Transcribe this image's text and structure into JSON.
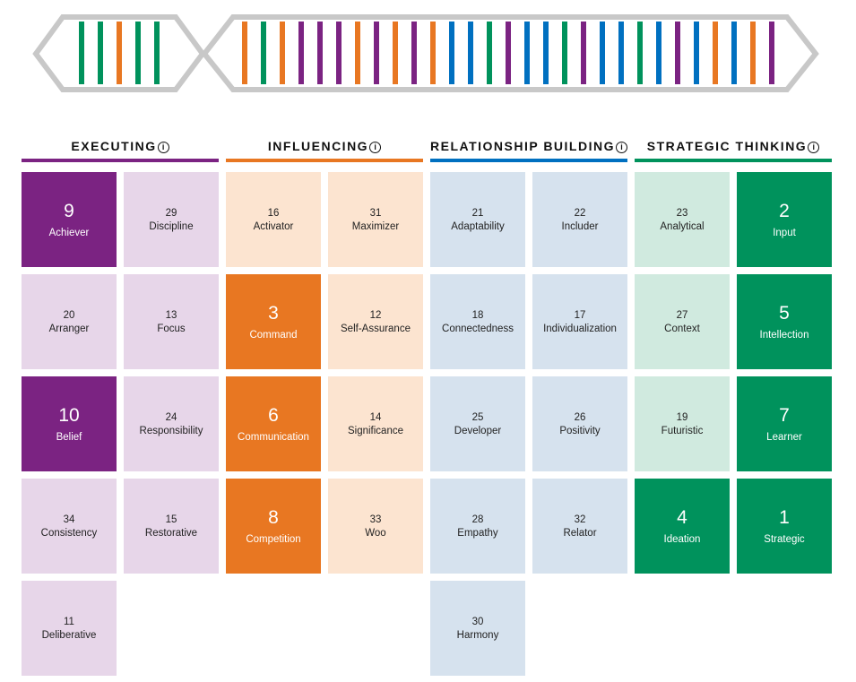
{
  "domains": [
    {
      "title": "EXECUTING",
      "color": "#7b2382",
      "light": "#e7d6e9",
      "strengths": [
        {
          "rank": 9,
          "name": "Achiever"
        },
        {
          "rank": 29,
          "name": "Discipline"
        },
        {
          "rank": 20,
          "name": "Arranger"
        },
        {
          "rank": 13,
          "name": "Focus"
        },
        {
          "rank": 10,
          "name": "Belief"
        },
        {
          "rank": 24,
          "name": "Responsibility"
        },
        {
          "rank": 34,
          "name": "Consistency"
        },
        {
          "rank": 15,
          "name": "Restorative"
        },
        {
          "rank": 11,
          "name": "Deliberative"
        }
      ]
    },
    {
      "title": "INFLUENCING",
      "color": "#e87722",
      "light": "#fce4d0",
      "strengths": [
        {
          "rank": 16,
          "name": "Activator"
        },
        {
          "rank": 31,
          "name": "Maximizer"
        },
        {
          "rank": 3,
          "name": "Command"
        },
        {
          "rank": 12,
          "name": "Self-Assurance"
        },
        {
          "rank": 6,
          "name": "Communication"
        },
        {
          "rank": 14,
          "name": "Significance"
        },
        {
          "rank": 8,
          "name": "Competition"
        },
        {
          "rank": 33,
          "name": "Woo"
        }
      ]
    },
    {
      "title": "RELATIONSHIP BUILDING",
      "color": "#0070c0",
      "light": "#d6e2ee",
      "strengths": [
        {
          "rank": 21,
          "name": "Adaptability"
        },
        {
          "rank": 22,
          "name": "Includer"
        },
        {
          "rank": 18,
          "name": "Connectedness"
        },
        {
          "rank": 17,
          "name": "Individualization"
        },
        {
          "rank": 25,
          "name": "Developer"
        },
        {
          "rank": 26,
          "name": "Positivity"
        },
        {
          "rank": 28,
          "name": "Empathy"
        },
        {
          "rank": 32,
          "name": "Relator"
        },
        {
          "rank": 30,
          "name": "Harmony"
        }
      ]
    },
    {
      "title": "STRATEGIC THINKING",
      "color": "#00925c",
      "light": "#d0eadf",
      "strengths": [
        {
          "rank": 23,
          "name": "Analytical"
        },
        {
          "rank": 2,
          "name": "Input"
        },
        {
          "rank": 27,
          "name": "Context"
        },
        {
          "rank": 5,
          "name": "Intellection"
        },
        {
          "rank": 19,
          "name": "Futuristic"
        },
        {
          "rank": 7,
          "name": "Learner"
        },
        {
          "rank": 4,
          "name": "Ideation"
        },
        {
          "rank": 1,
          "name": "Strategic"
        }
      ]
    }
  ]
}
